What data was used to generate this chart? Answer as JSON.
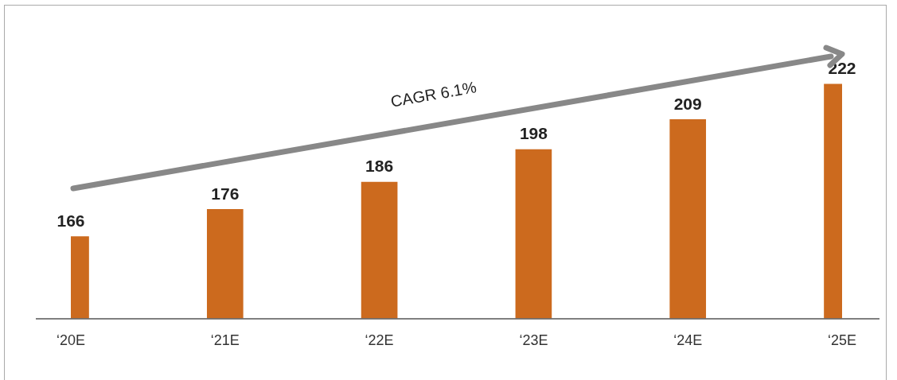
{
  "chart_data": {
    "type": "bar",
    "categories": [
      "‘20E",
      "‘21E",
      "‘22E",
      "‘23E",
      "‘24E",
      "‘25E"
    ],
    "values": [
      166,
      176,
      186,
      198,
      209,
      222
    ],
    "color": "#cc6a1e",
    "ylim": [
      136,
      250
    ],
    "tick_labels": "x",
    "data_labels": true,
    "grid": false,
    "legend": false,
    "annotations": [
      "CAGR 6.1%"
    ]
  }
}
